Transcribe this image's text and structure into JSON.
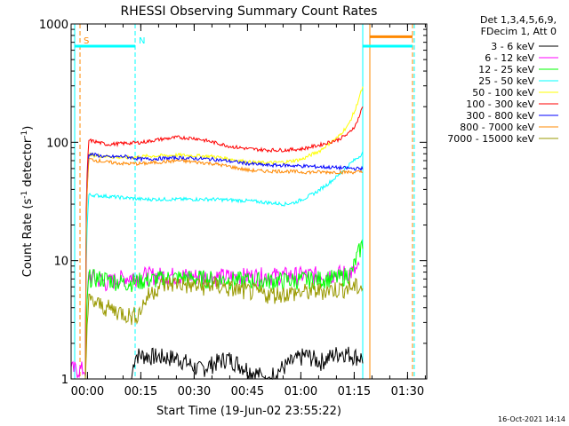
{
  "chart_data": {
    "type": "line",
    "title": "RHESSI Observing Summary Count Rates",
    "xlabel": "Start Time (19-Jun-02 23:55:22)",
    "ylabel_main": "Count Rate (s",
    "ylabel_sup1": "-1",
    "ylabel_mid": " detector",
    "ylabel_sup2": "-1",
    "ylabel_end": ")",
    "ylabel": "Count Rate (s-1 detector-1)",
    "yscale": "log",
    "ylim": [
      1,
      1000
    ],
    "xlim_min": [
      0,
      100
    ],
    "y_ticks": [
      {
        "value": 1,
        "label": "1"
      },
      {
        "value": 10,
        "label": "10"
      },
      {
        "value": 100,
        "label": "100"
      },
      {
        "value": 1000,
        "label": "1000"
      }
    ],
    "x_ticks": [
      {
        "value": 4.6,
        "label": "00:00"
      },
      {
        "value": 19.6,
        "label": "00:15"
      },
      {
        "value": 34.6,
        "label": "00:30"
      },
      {
        "value": 49.6,
        "label": "00:45"
      },
      {
        "value": 64.6,
        "label": "01:00"
      },
      {
        "value": 79.6,
        "label": "01:15"
      },
      {
        "value": 94.6,
        "label": "01:30"
      }
    ],
    "legend": {
      "header1": "Det 1,3,4,5,6,9,",
      "header2": "FDecim 1, Att 0",
      "position": "top-right"
    },
    "series": [
      {
        "name": "3 - 6 keV",
        "color": "#000000",
        "x": [
          0,
          17,
          18,
          30,
          36,
          44,
          50,
          55,
          66,
          70,
          76,
          79,
          82
        ],
        "y": [
          1,
          1,
          1.6,
          1.5,
          1.2,
          1.5,
          1.2,
          1,
          1.6,
          1.4,
          1.7,
          1.6,
          1.5
        ]
      },
      {
        "name": "6 - 12 keV",
        "color": "#ff00ff",
        "x": [
          0,
          4,
          5,
          10,
          15,
          20,
          30,
          40,
          50,
          60,
          70,
          76,
          79,
          81
        ],
        "y": [
          1.2,
          1.2,
          7.5,
          6.5,
          7.2,
          7.5,
          7.5,
          7.3,
          7.4,
          7.5,
          7.6,
          7.8,
          8.0,
          8.5
        ]
      },
      {
        "name": "12 - 25 keV",
        "color": "#00ff00",
        "x": [
          0,
          4,
          5,
          10,
          15,
          20,
          25,
          30,
          40,
          50,
          60,
          70,
          76,
          79,
          80,
          81,
          82
        ],
        "y": [
          1,
          1,
          7.2,
          7.0,
          6.5,
          6.8,
          7.0,
          7.2,
          7.0,
          6.8,
          6.8,
          7.0,
          7.2,
          8.0,
          10,
          12,
          14
        ]
      },
      {
        "name": "25 - 50 keV",
        "color": "#00ffff",
        "x": [
          0,
          4,
          5,
          10,
          15,
          20,
          30,
          40,
          50,
          55,
          60,
          63,
          66,
          69,
          72,
          75,
          77,
          79,
          81,
          82
        ],
        "y": [
          1,
          1,
          36,
          35,
          34,
          33,
          33,
          33,
          32,
          31,
          30,
          31,
          34,
          38,
          44,
          52,
          60,
          68,
          76,
          82
        ]
      },
      {
        "name": "50 - 100 keV",
        "color": "#ffff00",
        "x": [
          0,
          4,
          5,
          10,
          15,
          20,
          30,
          40,
          50,
          55,
          60,
          65,
          70,
          75,
          78,
          80,
          81,
          82
        ],
        "y": [
          1,
          1,
          78,
          76,
          74,
          76,
          78,
          76,
          68,
          67,
          68,
          72,
          85,
          110,
          140,
          190,
          240,
          290
        ]
      },
      {
        "name": "100 - 300 keV",
        "color": "#ff0000",
        "x": [
          0,
          4,
          5,
          10,
          15,
          20,
          25,
          30,
          35,
          40,
          45,
          50,
          55,
          60,
          65,
          70,
          75,
          78,
          80,
          81,
          82
        ],
        "y": [
          1,
          1,
          104,
          96,
          98,
          100,
          106,
          110,
          108,
          100,
          92,
          88,
          86,
          86,
          88,
          95,
          105,
          118,
          140,
          165,
          200
        ]
      },
      {
        "name": "300 - 800 keV",
        "color": "#0000ff",
        "x": [
          0,
          4,
          5,
          10,
          15,
          20,
          30,
          40,
          50,
          55,
          60,
          65,
          70,
          75,
          80,
          82
        ],
        "y": [
          1,
          1,
          80,
          75,
          76,
          72,
          74,
          72,
          66,
          64,
          64,
          63,
          62,
          61,
          60,
          60
        ]
      },
      {
        "name": "800 - 7000 keV",
        "color": "#ff8800",
        "x": [
          0,
          4,
          5,
          10,
          15,
          20,
          30,
          40,
          50,
          55,
          60,
          65,
          70,
          75,
          80,
          82
        ],
        "y": [
          1,
          1,
          72,
          68,
          66,
          66,
          70,
          66,
          58,
          57,
          57,
          56,
          56,
          56,
          56,
          56
        ]
      },
      {
        "name": "7000 - 15000 keV",
        "color": "#999900",
        "x": [
          0,
          4,
          5,
          10,
          15,
          17,
          19,
          22,
          25,
          30,
          35,
          40,
          45,
          50,
          55,
          60,
          65,
          70,
          76,
          79,
          82
        ],
        "y": [
          1,
          1,
          4.6,
          4.0,
          3.6,
          3.4,
          3.6,
          5.2,
          6.2,
          6.5,
          6.0,
          6.2,
          5.8,
          5.5,
          5.2,
          5.3,
          5.4,
          5.6,
          5.8,
          6.0,
          6.0
        ]
      }
    ],
    "mode_bars": [
      {
        "color": "#00ffff",
        "segments": [
          [
            1,
            18
          ],
          [
            82,
            96
          ]
        ],
        "y": 650
      },
      {
        "color": "#ff8800",
        "segments": [
          [
            84,
            96
          ]
        ],
        "y": 780
      }
    ],
    "event_markers": [
      {
        "label": "S",
        "x": 2.5,
        "color": "#ff8800"
      },
      {
        "label": "N",
        "x": 18,
        "color": "#00ffff"
      }
    ],
    "vlines": [
      {
        "x": 2.5,
        "color": "#ff8800",
        "style": "dashed"
      },
      {
        "x": 18,
        "color": "#00ffff",
        "style": "dashed"
      },
      {
        "x": 96,
        "color": "#ff8800",
        "style": "dashed"
      },
      {
        "x": 96.5,
        "color": "#00ffff",
        "style": "dashed"
      },
      {
        "x": 1,
        "color": "#00ffff",
        "style": "solid"
      },
      {
        "x": 82,
        "color": "#00ffff",
        "style": "solid"
      },
      {
        "x": 84,
        "color": "#ff8800",
        "style": "solid"
      }
    ],
    "footer_date": "16-Oct-2021 14:14"
  }
}
